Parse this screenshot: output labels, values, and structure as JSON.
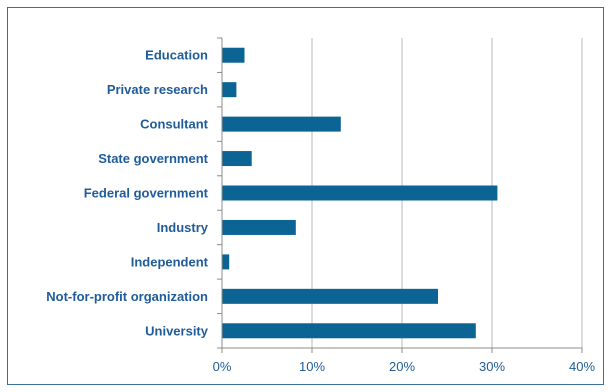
{
  "chart_data": {
    "type": "bar",
    "orientation": "horizontal",
    "categories": [
      "Education",
      "Private research",
      "Consultant",
      "State government",
      "Federal government",
      "Industry",
      "Independent",
      "Not-for-profit organization",
      "University"
    ],
    "values": [
      2.5,
      1.6,
      13.2,
      3.3,
      30.6,
      8.2,
      0.8,
      24.0,
      28.2
    ],
    "xlim": [
      0,
      40
    ],
    "xticks": [
      0,
      10,
      20,
      30,
      40
    ],
    "xtick_labels": [
      "0%",
      "10%",
      "20%",
      "30%",
      "40%"
    ],
    "title": "",
    "xlabel": "",
    "ylabel": "",
    "grid": "vertical",
    "legend": "none",
    "colors": {
      "bar": "#0b6494",
      "label": "#1f5c99",
      "tick": "#1f5c99",
      "grid": "#b9b9b9",
      "axis": "#8c8c8c",
      "border": "#3b6e9a"
    }
  }
}
